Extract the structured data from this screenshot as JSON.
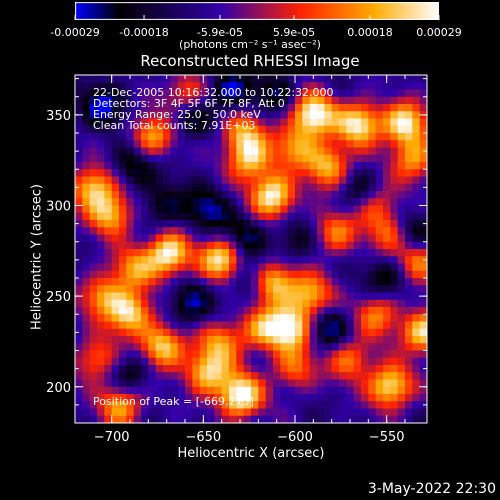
{
  "colorbar": {
    "tick_labels": [
      "-0.00029",
      "-0.00018",
      "-5.9e-05",
      "5.9e-05",
      "0.00018",
      "0.00029"
    ],
    "tick_values": [
      -0.00029,
      -0.00018,
      -5.9e-05,
      5.9e-05,
      0.00018,
      0.00029
    ],
    "units": "(photons cm⁻² s⁻¹ asec⁻²)",
    "colors": [
      "#0000ff",
      "#000000",
      "#3300aa",
      "#ff2200",
      "#ffaa00",
      "#ffffff"
    ]
  },
  "info": {
    "time_range": "22-Dec-2005 10:16:32.000 to 10:22:32.000",
    "detectors": "Detectors: 3F 4F 5F 6F 7F 8F, Att 0",
    "energy": "Energy Range: 25.0 - 50.0 keV",
    "clean": "Clean     Total counts: 7.91E+03",
    "peak": "Position of Peak = [-669,273]"
  },
  "date_stamp": "3-May-2022 22:30",
  "chart_data": {
    "type": "heatmap",
    "title": "Reconstructed RHESSI Image",
    "xlabel": "Heliocentric X (arcsec)",
    "ylabel": "Heliocentric Y (arcsec)",
    "xlim": [
      -720,
      -528
    ],
    "ylim": [
      180,
      372
    ],
    "xticks": [
      -700,
      -650,
      -600,
      -550
    ],
    "xtick_labels": [
      "−700",
      "−650",
      "−600",
      "−550"
    ],
    "yticks": [
      200,
      250,
      300,
      350
    ],
    "ytick_labels": [
      "200",
      "250",
      "300",
      "350"
    ],
    "grid": false,
    "peak": [
      -669,
      273
    ],
    "colormap": "blue-black-purple-red-orange-yellow-white",
    "blobs": [
      [
        -669,
        273,
        0.9
      ],
      [
        -640,
        270,
        0.85
      ],
      [
        -612,
        305,
        0.9
      ],
      [
        -612,
        258,
        0.8
      ],
      [
        -558,
        302,
        0.8
      ],
      [
        -590,
        350,
        0.95
      ],
      [
        -565,
        345,
        0.85
      ],
      [
        -582,
        322,
        0.7
      ],
      [
        -600,
        332,
        0.55
      ],
      [
        -625,
        325,
        0.7
      ],
      [
        -628,
        340,
        0.6
      ],
      [
        -678,
        338,
        0.65
      ],
      [
        -660,
        360,
        0.6
      ],
      [
        -700,
        295,
        0.7
      ],
      [
        -710,
        310,
        0.75
      ],
      [
        -688,
        265,
        0.55
      ],
      [
        -705,
        250,
        0.6
      ],
      [
        -690,
        240,
        0.8
      ],
      [
        -672,
        222,
        0.8
      ],
      [
        -648,
        208,
        0.75
      ],
      [
        -630,
        195,
        0.95
      ],
      [
        -640,
        225,
        0.55
      ],
      [
        -618,
        232,
        0.55
      ],
      [
        -603,
        232,
        0.85
      ],
      [
        -592,
        250,
        0.7
      ],
      [
        -555,
        240,
        0.55
      ],
      [
        -530,
        230,
        0.8
      ],
      [
        -548,
        200,
        0.85
      ],
      [
        -570,
        215,
        0.55
      ],
      [
        -600,
        210,
        0.5
      ],
      [
        -708,
        215,
        0.55
      ],
      [
        -695,
        190,
        0.65
      ],
      [
        -532,
        270,
        0.6
      ],
      [
        -540,
        345,
        0.85
      ],
      [
        -535,
        325,
        0.6
      ],
      [
        -548,
        285,
        0.5
      ],
      [
        -578,
        285,
        0.55
      ]
    ],
    "dips": [
      [
        -658,
        350,
        0.6
      ],
      [
        -635,
        363,
        0.6
      ],
      [
        -705,
        355,
        0.6
      ],
      [
        -688,
        322,
        0.55
      ],
      [
        -648,
        298,
        0.55
      ],
      [
        -628,
        283,
        0.5
      ],
      [
        -562,
        305,
        0.9
      ],
      [
        -582,
        232,
        0.55
      ],
      [
        -658,
        245,
        0.55
      ],
      [
        -625,
        260,
        0.5
      ],
      [
        -535,
        285,
        0.55
      ],
      [
        -550,
        260,
        0.45
      ],
      [
        -690,
        208,
        0.5
      ],
      [
        -672,
        300,
        0.45
      ],
      [
        -600,
        280,
        0.4
      ],
      [
        -610,
        362,
        0.4
      ]
    ]
  }
}
